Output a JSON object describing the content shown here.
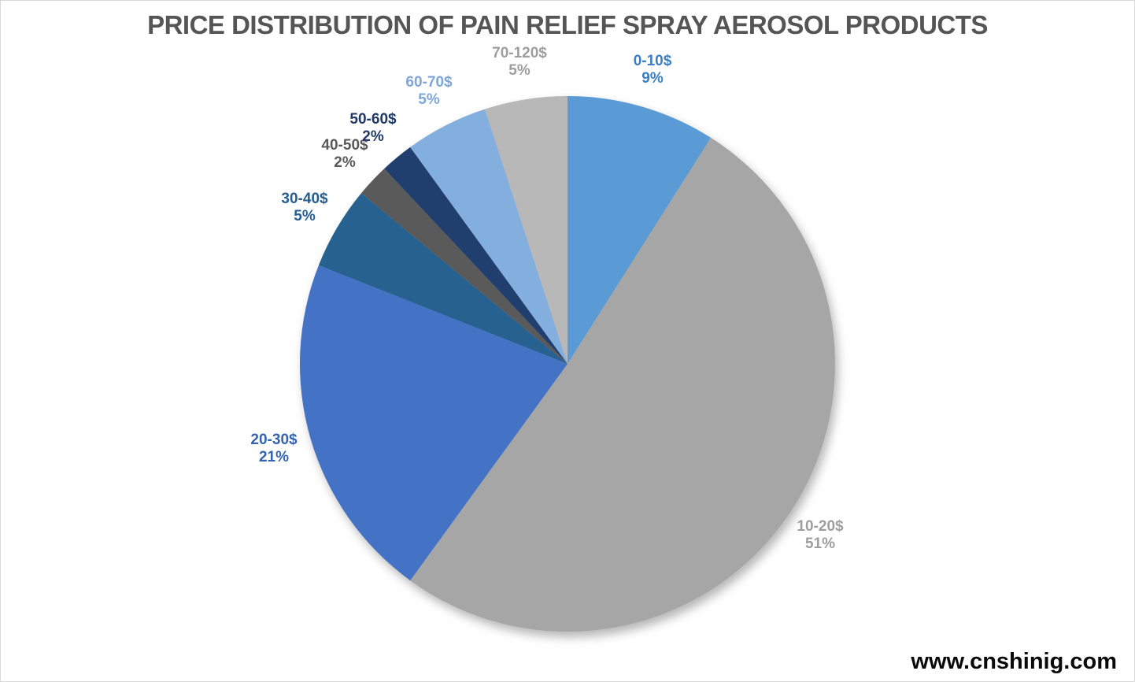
{
  "page": {
    "watermark": "www.cnshinig.com"
  },
  "chart_data": {
    "type": "pie",
    "title": "PRICE DISTRIBUTION OF PAIN RELIEF SPRAY AEROSOL PRODUCTS",
    "unit": "percent",
    "start_angle_deg": 0,
    "direction": "clockwise",
    "legend_position": "none",
    "labels_outside": true,
    "categories": [
      "0-10$",
      "10-20$",
      "20-30$",
      "30-40$",
      "40-50$",
      "50-60$",
      "60-70$",
      "70-120$"
    ],
    "values": [
      9,
      51,
      21,
      5,
      2,
      2,
      5,
      5
    ],
    "slices": [
      {
        "label": "0-10$",
        "value": 9,
        "color": "#5B9BD5",
        "label_color": "#3C7FC0"
      },
      {
        "label": "10-20$",
        "value": 51,
        "color": "#A6A6A6",
        "label_color": "#9E9E9E"
      },
      {
        "label": "20-30$",
        "value": 21,
        "color": "#4472C4",
        "label_color": "#3563AF"
      },
      {
        "label": "30-40$",
        "value": 5,
        "color": "#26618F",
        "label_color": "#255E91"
      },
      {
        "label": "40-50$",
        "value": 2,
        "color": "#5A5A5A",
        "label_color": "#595959"
      },
      {
        "label": "50-60$",
        "value": 2,
        "color": "#203E6E",
        "label_color": "#1F3864"
      },
      {
        "label": "60-70$",
        "value": 5,
        "color": "#82AFDE",
        "label_color": "#7EA6D9"
      },
      {
        "label": "70-120$",
        "value": 5,
        "color": "#B8B8B8",
        "label_color": "#9E9E9E"
      }
    ],
    "title_color": "#555555",
    "background_color": "#FFFFFF"
  }
}
